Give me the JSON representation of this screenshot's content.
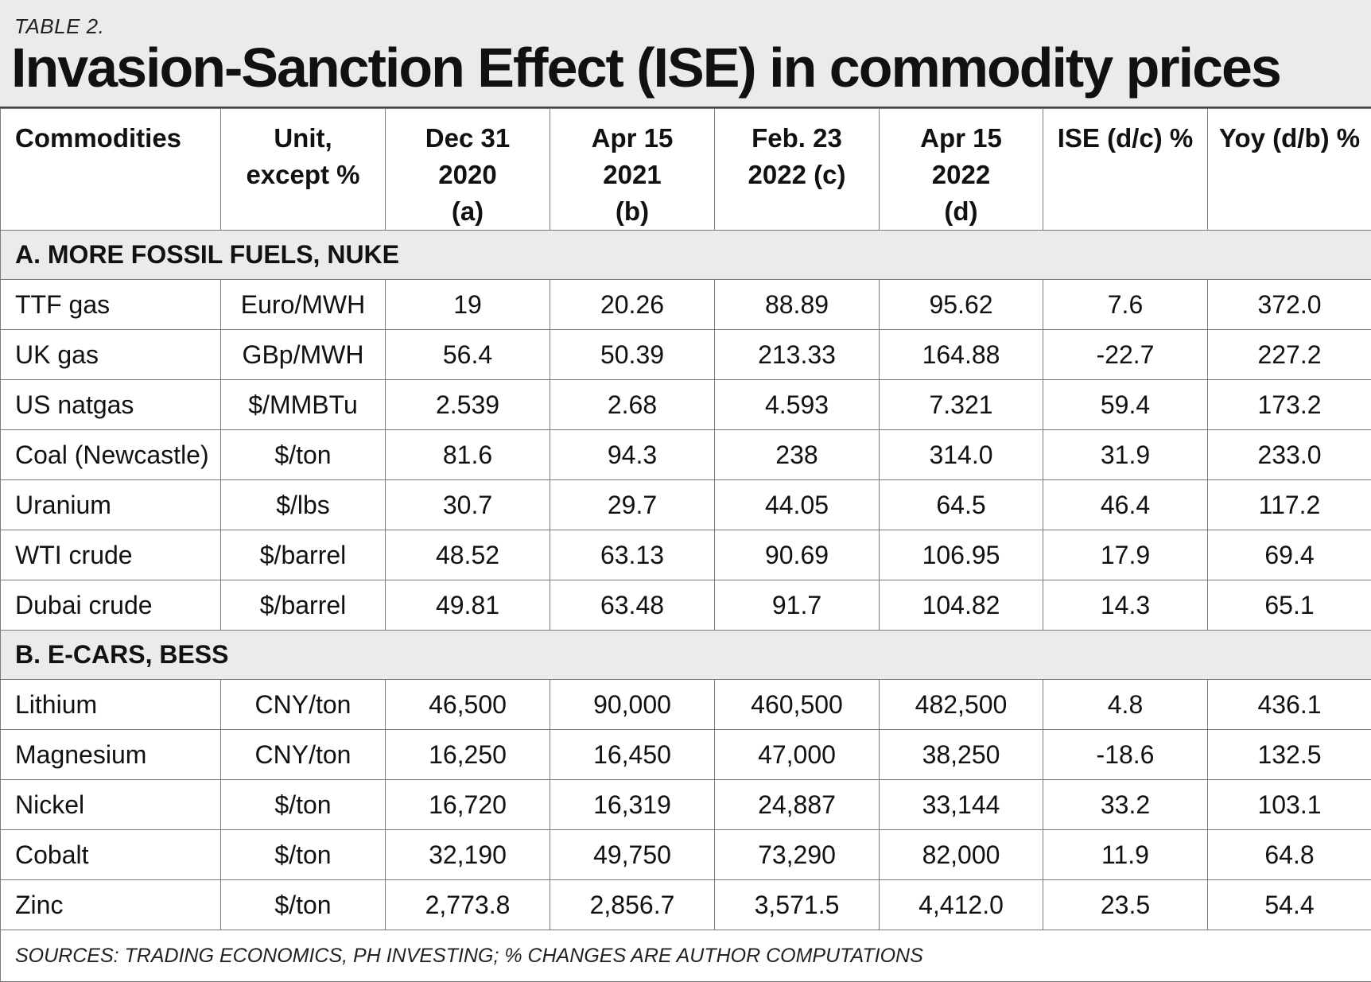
{
  "table_label": "TABLE 2.",
  "title": "Invasion-Sanction Effect (ISE) in commodity prices",
  "headers": [
    {
      "line1": "Commodities",
      "line2": ""
    },
    {
      "line1": "Unit,",
      "line2": "except %"
    },
    {
      "line1": "Dec 31 2020",
      "line2": "(a)"
    },
    {
      "line1": "Apr 15 2021",
      "line2": "(b)"
    },
    {
      "line1": "Feb. 23",
      "line2": "2022 (c)"
    },
    {
      "line1": "Apr 15 2022",
      "line2": "(d)"
    },
    {
      "line1": "ISE (d/c) %",
      "line2": ""
    },
    {
      "line1": "Yoy (d/b) %",
      "line2": ""
    }
  ],
  "sections": [
    {
      "title": "A. MORE FOSSIL FUELS, NUKE",
      "rows": [
        [
          "TTF gas",
          "Euro/MWH",
          "19",
          "20.26",
          "88.89",
          "95.62",
          "7.6",
          "372.0"
        ],
        [
          "UK gas",
          "GBp/MWH",
          "56.4",
          "50.39",
          "213.33",
          "164.88",
          "-22.7",
          "227.2"
        ],
        [
          "US natgas",
          "$/MMBTu",
          "2.539",
          "2.68",
          "4.593",
          "7.321",
          "59.4",
          "173.2"
        ],
        [
          "Coal (Newcastle)",
          "$/ton",
          "81.6",
          "94.3",
          "238",
          "314.0",
          "31.9",
          "233.0"
        ],
        [
          "Uranium",
          "$/lbs",
          "30.7",
          "29.7",
          "44.05",
          "64.5",
          "46.4",
          "117.2"
        ],
        [
          "WTI crude",
          "$/barrel",
          "48.52",
          "63.13",
          "90.69",
          "106.95",
          "17.9",
          "69.4"
        ],
        [
          "Dubai crude",
          "$/barrel",
          "49.81",
          "63.48",
          "91.7",
          "104.82",
          "14.3",
          "65.1"
        ]
      ]
    },
    {
      "title": "B. E-CARS, BESS",
      "rows": [
        [
          "Lithium",
          "CNY/ton",
          "46,500",
          "90,000",
          "460,500",
          "482,500",
          "4.8",
          "436.1"
        ],
        [
          "Magnesium",
          "CNY/ton",
          "16,250",
          "16,450",
          "47,000",
          "38,250",
          "-18.6",
          "132.5"
        ],
        [
          "Nickel",
          "$/ton",
          "16,720",
          "16,319",
          "24,887",
          "33,144",
          "33.2",
          "103.1"
        ],
        [
          "Cobalt",
          "$/ton",
          "32,190",
          "49,750",
          "73,290",
          "82,000",
          "11.9",
          "64.8"
        ],
        [
          "Zinc",
          "$/ton",
          "2,773.8",
          "2,856.7",
          "3,571.5",
          "4,412.0",
          "23.5",
          "54.4"
        ]
      ]
    }
  ],
  "source": "SOURCES: TRADING ECONOMICS, PH INVESTING; % CHANGES ARE AUTHOR COMPUTATIONS",
  "colors": {
    "header_background": "#ebebeb",
    "border": "#7a7a7a",
    "text": "#111111"
  }
}
